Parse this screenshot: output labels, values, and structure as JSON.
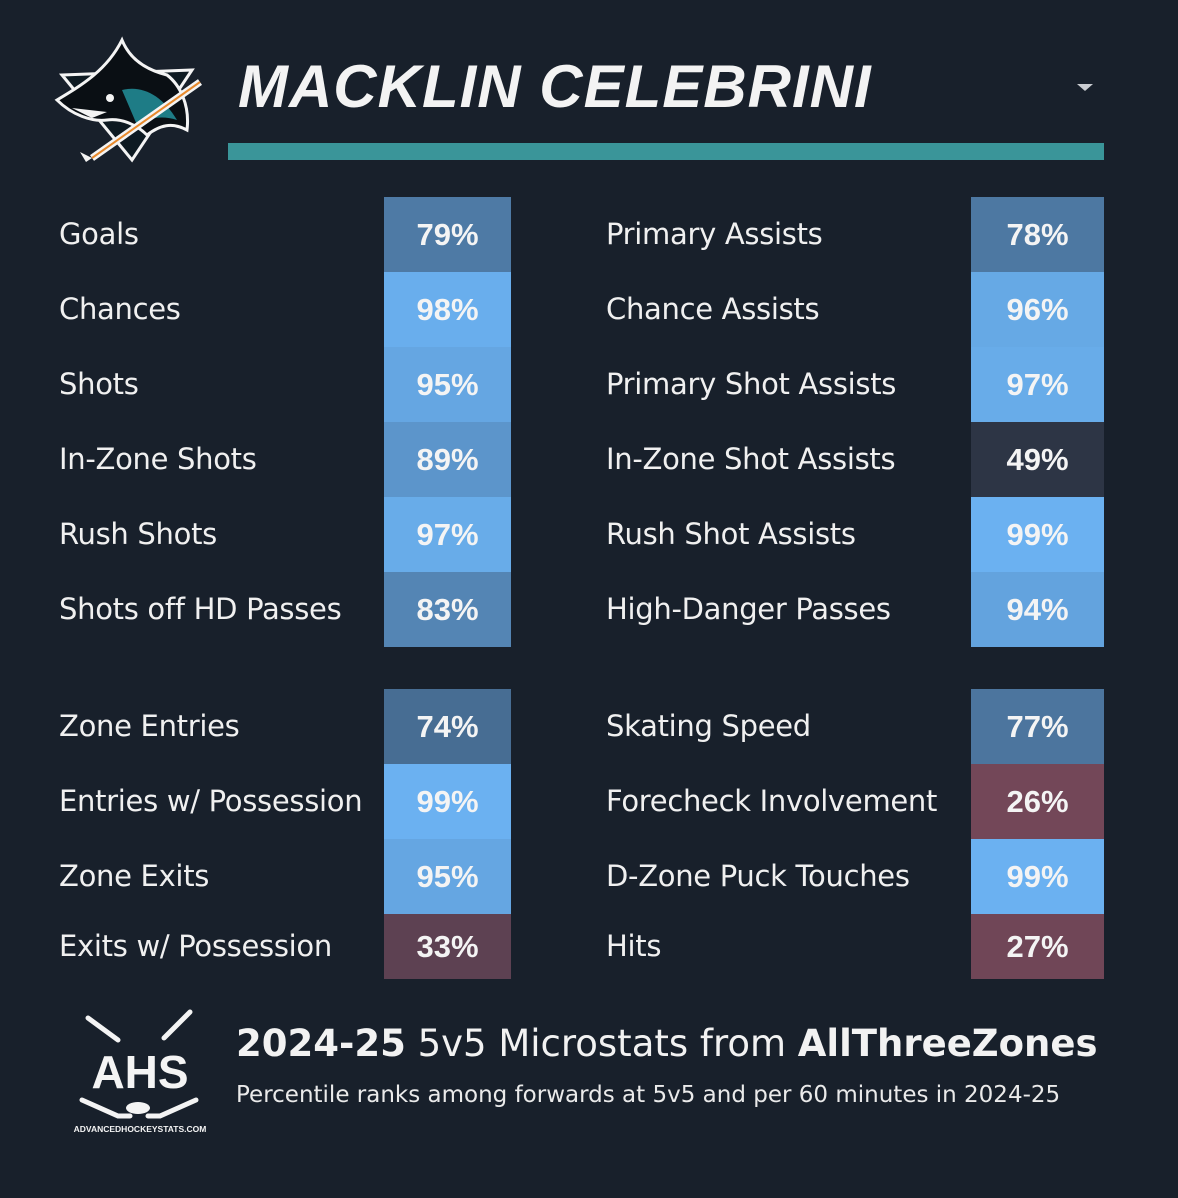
{
  "header": {
    "player_name": "MACKLIN CELEBRINI",
    "accent_color": "#3a9599",
    "team_logo_icon": "san-jose-sharks-logo",
    "dropdown_icon": "caret-down-icon"
  },
  "chart_data": {
    "type": "table",
    "metric": "percentile",
    "color_scale": {
      "high": "#6cb4f5",
      "mid": "#2a3444",
      "low": "#8a5060"
    },
    "groups": [
      {
        "name": "shooting",
        "stats": [
          {
            "label": "Goals",
            "value": 79
          },
          {
            "label": "Chances",
            "value": 98
          },
          {
            "label": "Shots",
            "value": 95
          },
          {
            "label": "In-Zone Shots",
            "value": 89
          },
          {
            "label": "Rush Shots",
            "value": 97
          },
          {
            "label": "Shots off HD Passes",
            "value": 83
          }
        ]
      },
      {
        "name": "passing",
        "stats": [
          {
            "label": "Primary Assists",
            "value": 78
          },
          {
            "label": "Chance Assists",
            "value": 96
          },
          {
            "label": "Primary Shot Assists",
            "value": 97
          },
          {
            "label": "In-Zone Shot Assists",
            "value": 49
          },
          {
            "label": "Rush Shot Assists",
            "value": 99
          },
          {
            "label": "High-Danger Passes",
            "value": 94
          }
        ]
      },
      {
        "name": "transition",
        "stats": [
          {
            "label": "Zone Entries",
            "value": 74
          },
          {
            "label": "Entries w/ Possession",
            "value": 99
          },
          {
            "label": "Zone Exits",
            "value": 95
          },
          {
            "label": "Exits w/ Possession",
            "value": 33
          }
        ]
      },
      {
        "name": "other",
        "stats": [
          {
            "label": "Skating Speed",
            "value": 77
          },
          {
            "label": "Forecheck Involvement",
            "value": 26
          },
          {
            "label": "D-Zone Puck Touches",
            "value": 99
          },
          {
            "label": "Hits",
            "value": 27
          }
        ]
      }
    ]
  },
  "footer": {
    "logo_text": "AHS",
    "logo_url_text": "ADVANCEDHOCKEYSTATS.COM",
    "title_season": "2024-25",
    "title_middle": " 5v5 Microstats from ",
    "title_source": "AllThreeZones",
    "subtitle": "Percentile ranks among forwards at 5v5 and per 60 minutes in 2024-25"
  }
}
